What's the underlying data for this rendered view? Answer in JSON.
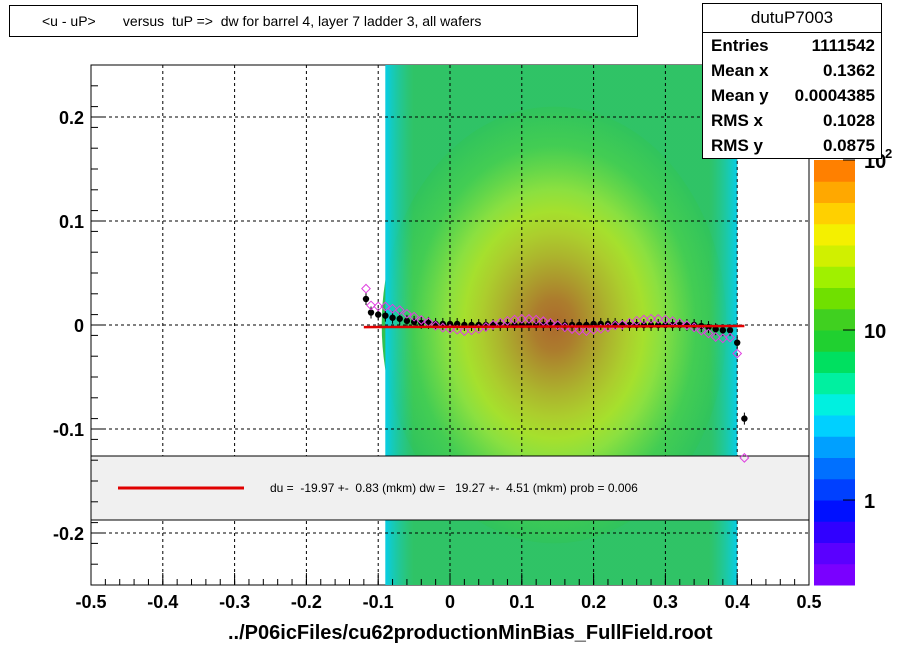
{
  "title": "<u - uP>       versus  tuP =>  dw for barrel 4, layer 7 ladder 3, all wafers",
  "stats": {
    "name": "dutuP7003",
    "rows": [
      {
        "k": "Entries",
        "v": "1111542"
      },
      {
        "k": "Mean x",
        "v": "0.1362"
      },
      {
        "k": "Mean y",
        "v": "0.0004385"
      },
      {
        "k": "RMS x",
        "v": "0.1028"
      },
      {
        "k": "RMS y",
        "v": "0.0875"
      }
    ]
  },
  "legend_text": "du =  -19.97 +-  0.83 (mkm) dw =   19.27 +-  4.51 (mkm) prob = 0.006",
  "xtitle": "../P06icFiles/cu62productionMinBias_FullField.root",
  "chart_data": {
    "type": "heatmap",
    "xlim": [
      -0.5,
      0.5
    ],
    "ylim": [
      -0.25,
      0.25
    ],
    "x_ticks": [
      "-0.5",
      "-0.4",
      "-0.3",
      "-0.2",
      "-0.1",
      "0",
      "0.1",
      "0.2",
      "0.3",
      "0.4",
      "0.5"
    ],
    "y_ticks": [
      "-0.2",
      "-0.1",
      "0",
      "0.1",
      "0.2"
    ],
    "z_ticks": [
      "1",
      "10",
      "10^2"
    ],
    "grid": true,
    "heatmap_x_range": [
      -0.09,
      0.4
    ],
    "profile_points": {
      "x": [
        -0.117,
        -0.11,
        -0.1,
        -0.09,
        -0.08,
        -0.07,
        -0.06,
        -0.05,
        -0.04,
        -0.03,
        -0.02,
        -0.01,
        0,
        0.01,
        0.02,
        0.03,
        0.04,
        0.05,
        0.06,
        0.07,
        0.08,
        0.09,
        0.1,
        0.11,
        0.12,
        0.13,
        0.14,
        0.15,
        0.16,
        0.17,
        0.18,
        0.19,
        0.2,
        0.21,
        0.22,
        0.23,
        0.24,
        0.25,
        0.26,
        0.27,
        0.28,
        0.29,
        0.3,
        0.31,
        0.32,
        0.33,
        0.34,
        0.35,
        0.36,
        0.37,
        0.38,
        0.39,
        0.4,
        0.41
      ],
      "y": [
        0.025,
        0.012,
        0.01,
        0.009,
        0.007,
        0.006,
        0.004,
        0.003,
        0.002,
        0.002,
        0.001,
        0.001,
        0.001,
        0.001,
        0,
        0,
        0,
        0,
        0,
        0,
        0,
        0,
        0,
        0,
        0,
        0,
        0,
        0,
        0,
        0,
        0,
        0,
        0.001,
        0.001,
        0.001,
        0.001,
        0,
        0,
        0,
        0,
        0,
        0,
        0,
        0,
        0,
        0,
        0,
        -0.001,
        -0.002,
        -0.004,
        -0.005,
        -0.005,
        -0.017,
        -0.09
      ]
    },
    "fit_line": {
      "x": [
        -0.12,
        0.41
      ],
      "y": [
        -0.002,
        -0.001
      ]
    },
    "legend": [
      {
        "name": "du =  -19.97 +-  0.83 (mkm) dw =   19.27 +-  4.51 (mkm) prob = 0.006",
        "color": "#e00000"
      }
    ]
  }
}
